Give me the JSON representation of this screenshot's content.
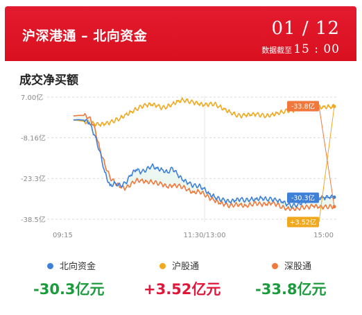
{
  "header": {
    "title": "沪深港通 – 北向资金",
    "date": "01 / 12",
    "asof_label": "数据截至",
    "asof_time": "15 : 00"
  },
  "section_title": "成交净买额",
  "colors": {
    "banner": "#d8101f",
    "north": "#3e7fd8",
    "sh": "#f0a81e",
    "sz": "#f0783c",
    "negative": "#1a9c3c",
    "positive": "#e0163a"
  },
  "legend": [
    {
      "name": "北向资金",
      "color": "#3e7fd8",
      "value": "-30.3亿元",
      "value_color": "#1a9c3c"
    },
    {
      "name": "沪股通",
      "color": "#f0a81e",
      "value": "+3.52亿元",
      "value_color": "#e0163a"
    },
    {
      "name": "深股通",
      "color": "#f0783c",
      "value": "-33.8亿元",
      "value_color": "#1a9c3c"
    }
  ],
  "chart_data": {
    "type": "line",
    "y_unit": "亿",
    "ylim": [
      -38.5,
      7.0
    ],
    "y_ticks": [
      7.0,
      -8.16,
      -23.3,
      -38.5
    ],
    "y_tick_labels": [
      "7.00亿",
      "-8.16亿",
      "-23.3亿",
      "-38.5亿"
    ],
    "x_ticks": [
      "09:15",
      "11:30/13:00",
      "15:00"
    ],
    "x": [
      0.0,
      0.02,
      0.04,
      0.06,
      0.08,
      0.1,
      0.12,
      0.14,
      0.16,
      0.18,
      0.2,
      0.22,
      0.24,
      0.26,
      0.28,
      0.3,
      0.32,
      0.34,
      0.36,
      0.38,
      0.4,
      0.42,
      0.44,
      0.46,
      0.48,
      0.5,
      0.52,
      0.54,
      0.56,
      0.58,
      0.6,
      0.62,
      0.64,
      0.66,
      0.68,
      0.7,
      0.72,
      0.74,
      0.76,
      0.78,
      0.8,
      0.82,
      0.84,
      0.86,
      0.88,
      0.9,
      0.92,
      0.94,
      0.96,
      0.98,
      1.0
    ],
    "series": [
      {
        "name": "北向资金",
        "color": "#3e7fd8",
        "end_label": "-30.3亿",
        "values": [
          -1.5,
          -1.4,
          -1.6,
          -2.5,
          -7,
          -13,
          -21,
          -26,
          -25,
          -26,
          -25,
          -22,
          -20,
          -21,
          -20,
          -18.5,
          -19.5,
          -20,
          -21,
          -19.5,
          -22,
          -24,
          -25,
          -26,
          -26,
          -27,
          -29,
          -30,
          -31,
          -31.5,
          -32,
          -31.5,
          -31,
          -31.5,
          -31,
          -31,
          -30.5,
          -31,
          -31,
          -31.5,
          -32,
          -33,
          -33.5,
          -33,
          -32,
          -31.5,
          -30.5,
          -30.5,
          -30.5,
          -30.3,
          -30.3
        ]
      },
      {
        "name": "沪股通",
        "color": "#f0a81e",
        "end_label": "+3.52亿",
        "values": [
          -1.5,
          -1.7,
          -2.0,
          -2.5,
          -3.0,
          -3.3,
          -3.0,
          -2.5,
          -1.6,
          -0.8,
          0.5,
          1.5,
          2.5,
          3.5,
          4.0,
          4.2,
          3.8,
          3.0,
          3.5,
          4.5,
          5.5,
          6.0,
          5.5,
          5.0,
          4.5,
          4.0,
          4.3,
          4.5,
          3.5,
          2.5,
          1.5,
          0.5,
          0.0,
          0.3,
          0.4,
          0.6,
          0.3,
          0.0,
          0.5,
          1.0,
          1.5,
          2.0,
          2.0,
          2.5,
          2.8,
          3.0,
          3.2,
          3.3,
          3.4,
          3.5,
          3.52
        ]
      },
      {
        "name": "深股通",
        "color": "#f0783c",
        "end_label": "-33.8亿",
        "values": [
          0.0,
          0.2,
          0.2,
          -0.5,
          -4.0,
          -12.0,
          -18.0,
          -23.0,
          -25.0,
          -26.5,
          -27.0,
          -25.5,
          -24.0,
          -24.0,
          -24.5,
          -24.5,
          -25.0,
          -25.5,
          -26.5,
          -26.0,
          -26.0,
          -26.5,
          -27.5,
          -28.5,
          -28.0,
          -29.0,
          -30.5,
          -31.5,
          -32.5,
          -33.0,
          -33.5,
          -33.0,
          -33.0,
          -33.5,
          -33.0,
          -32.5,
          -33.0,
          -33.0,
          -32.5,
          -33.0,
          -34.0,
          -34.5,
          -34.5,
          -34.5,
          -34.0,
          -34.0,
          -33.5,
          -34.0,
          -34.0,
          -33.8,
          -33.8
        ]
      }
    ],
    "grid": "horizontal-dashed",
    "legend_position": "bottom"
  }
}
